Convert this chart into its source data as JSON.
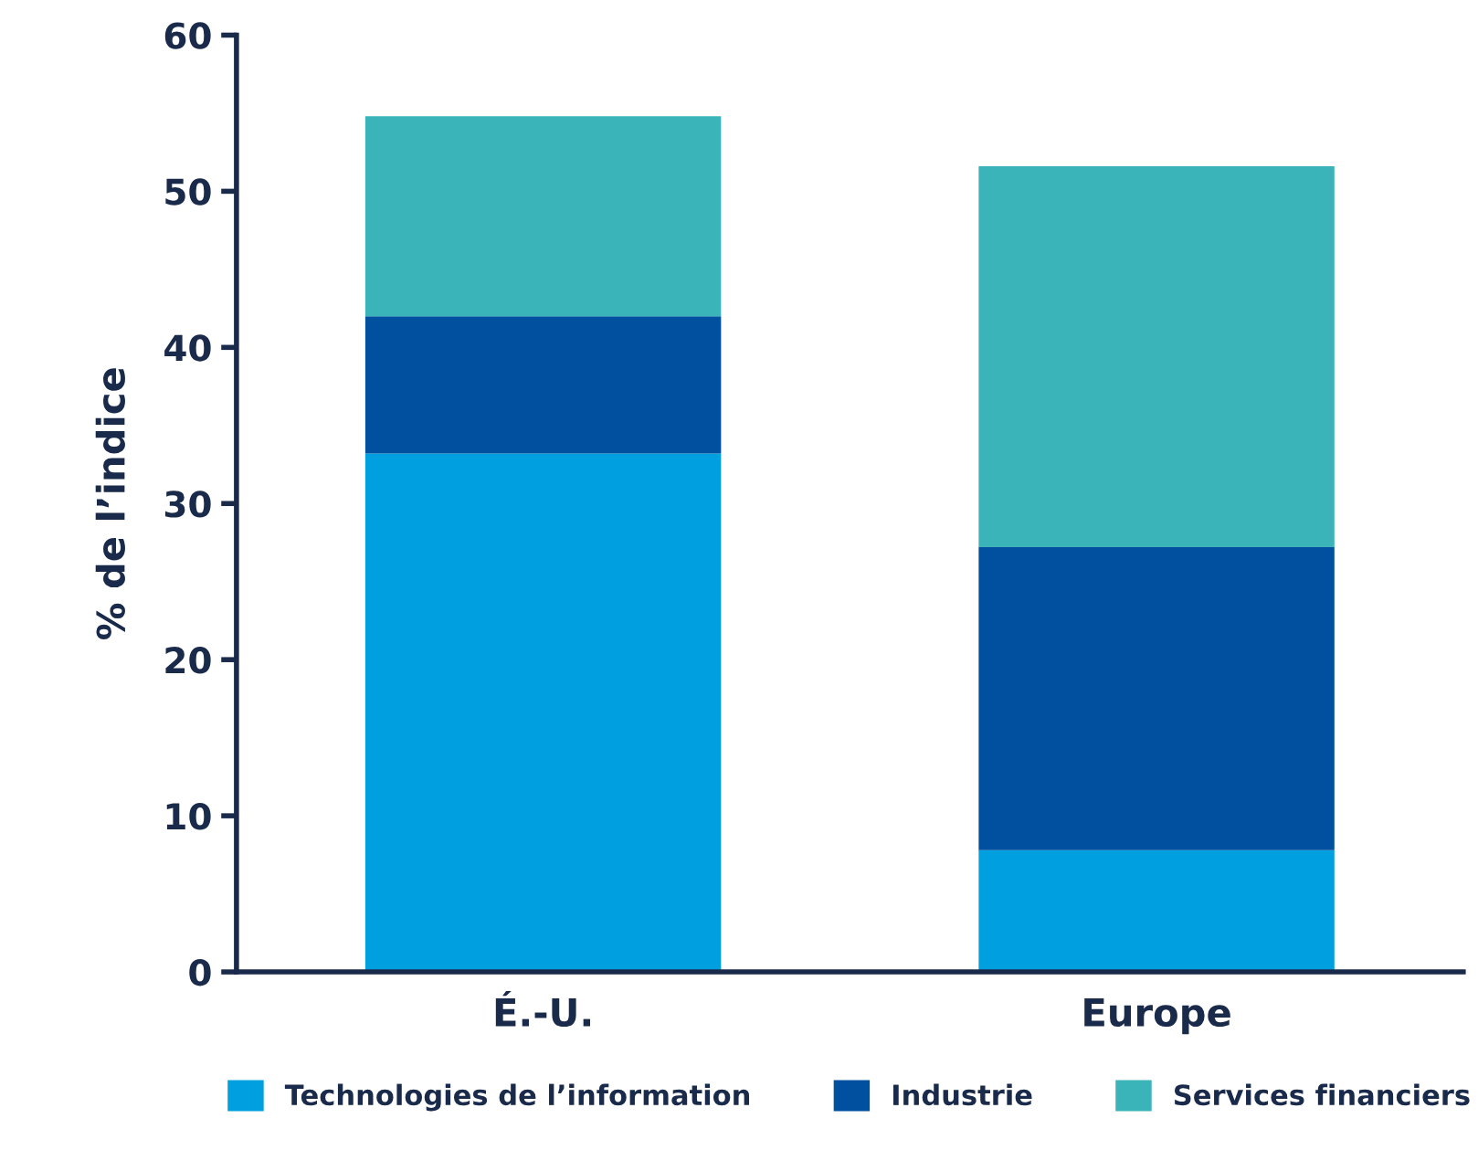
{
  "chart_data": {
    "type": "bar",
    "stacked": true,
    "ylabel": "% de l’indice",
    "categories": [
      "É.-U.",
      "Europe"
    ],
    "series": [
      {
        "name": "Technologies de l’information",
        "color": "#00a0e0",
        "values": [
          33.2,
          7.8
        ]
      },
      {
        "name": "Industrie",
        "color": "#0050a0",
        "values": [
          8.8,
          19.4
        ]
      },
      {
        "name": "Services financiers",
        "color": "#3ab4b8",
        "values": [
          12.8,
          24.4
        ]
      }
    ],
    "ylim": [
      0,
      60
    ],
    "yticks": [
      0,
      10,
      20,
      30,
      40,
      50,
      60
    ],
    "grid": false,
    "legend": "bottom"
  }
}
